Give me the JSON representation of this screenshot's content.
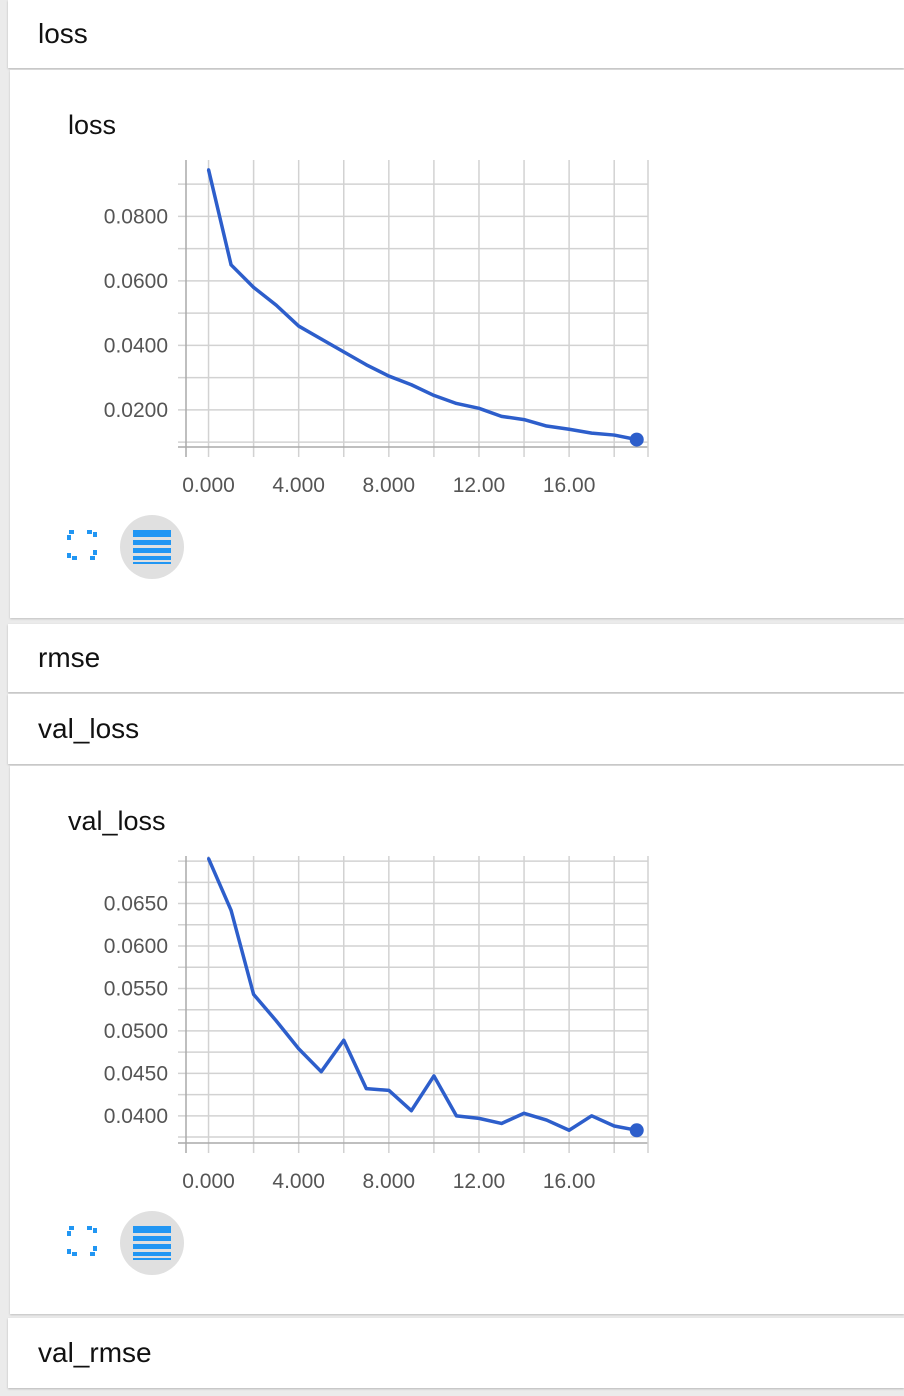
{
  "sections": {
    "loss": {
      "label": "loss"
    },
    "rmse": {
      "label": "rmse"
    },
    "val_loss": {
      "label": "val_loss"
    },
    "val_rmse": {
      "label": "val_rmse"
    }
  },
  "icons": {
    "expand": "fullscreen-expand-icon",
    "data": "data-table-icon"
  },
  "colors": {
    "series": "#2d5ecb",
    "icon": "#2196f3",
    "grid": "#d2d2d2"
  },
  "chart_data": [
    {
      "type": "line",
      "title": "loss",
      "xlabel": "",
      "ylabel": "",
      "xlim": [
        -1,
        19.5
      ],
      "ylim": [
        0.0085,
        0.0975
      ],
      "x": [
        0,
        1,
        2,
        3,
        4,
        5,
        6,
        7,
        8,
        9,
        10,
        11,
        12,
        13,
        14,
        15,
        16,
        17,
        18,
        19
      ],
      "series": [
        {
          "values": [
            0.0945,
            0.065,
            0.058,
            0.0525,
            0.046,
            0.042,
            0.038,
            0.034,
            0.0305,
            0.0278,
            0.0245,
            0.022,
            0.0205,
            0.018,
            0.017,
            0.015,
            0.014,
            0.0128,
            0.0122,
            0.0108
          ]
        }
      ],
      "xticks": [
        0,
        4,
        8,
        12,
        16
      ],
      "xtick_labels": [
        "0.000",
        "4.000",
        "8.000",
        "12.00",
        "16.00"
      ],
      "yticks": [
        0.02,
        0.04,
        0.06,
        0.08
      ],
      "ytick_labels": [
        "0.0200",
        "0.0400",
        "0.0600",
        "0.0800"
      ],
      "grid": true
    },
    {
      "type": "line",
      "title": "val_loss",
      "xlabel": "",
      "ylabel": "",
      "xlim": [
        -1,
        19.5
      ],
      "ylim": [
        0.0368,
        0.0706
      ],
      "x": [
        0,
        1,
        2,
        3,
        4,
        5,
        6,
        7,
        8,
        9,
        10,
        11,
        12,
        13,
        14,
        15,
        16,
        17,
        18,
        19
      ],
      "series": [
        {
          "values": [
            0.0703,
            0.0642,
            0.0543,
            0.0512,
            0.0479,
            0.0452,
            0.0489,
            0.0432,
            0.043,
            0.0406,
            0.0447,
            0.04,
            0.0397,
            0.0391,
            0.0403,
            0.0395,
            0.0383,
            0.04,
            0.0388,
            0.0383
          ]
        }
      ],
      "xticks": [
        0,
        4,
        8,
        12,
        16
      ],
      "xtick_labels": [
        "0.000",
        "4.000",
        "8.000",
        "12.00",
        "16.00"
      ],
      "yticks": [
        0.04,
        0.045,
        0.05,
        0.055,
        0.06,
        0.065
      ],
      "ytick_labels": [
        "0.0400",
        "0.0450",
        "0.0500",
        "0.0550",
        "0.0600",
        "0.0650"
      ],
      "grid": true
    }
  ]
}
